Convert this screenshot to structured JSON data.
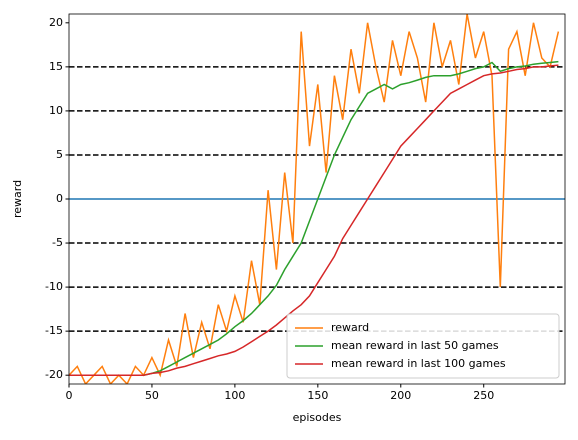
{
  "chart_data": {
    "type": "line",
    "xlabel": "episodes",
    "ylabel": "reward",
    "x": [
      0,
      5,
      10,
      15,
      20,
      25,
      30,
      35,
      40,
      45,
      50,
      55,
      60,
      65,
      70,
      75,
      80,
      85,
      90,
      95,
      100,
      105,
      110,
      115,
      120,
      125,
      130,
      135,
      140,
      145,
      150,
      155,
      160,
      165,
      170,
      175,
      180,
      185,
      190,
      195,
      200,
      205,
      210,
      215,
      220,
      225,
      230,
      235,
      240,
      245,
      250,
      255,
      260,
      265,
      270,
      275,
      280,
      285,
      290,
      295
    ],
    "series": [
      {
        "name": "reward",
        "color": "#ff7f0e",
        "values": [
          -20,
          -19,
          -21,
          -20,
          -19,
          -21,
          -20,
          -21,
          -19,
          -20,
          -18,
          -20,
          -16,
          -19,
          -13,
          -18,
          -14,
          -17,
          -12,
          -15,
          -11,
          -14,
          -7,
          -12,
          1,
          -8,
          3,
          -5,
          19,
          6,
          13,
          3,
          14,
          9,
          17,
          12,
          20,
          15,
          11,
          18,
          14,
          19,
          16,
          11,
          20,
          15,
          18,
          13,
          21,
          16,
          19,
          14,
          -10,
          17,
          19,
          14,
          20,
          16,
          15,
          19
        ]
      },
      {
        "name": "mean reward in last 50 games",
        "color": "#2ca02c",
        "values": [
          -20,
          -20,
          -20,
          -20,
          -20,
          -20,
          -20,
          -20,
          -20,
          -20,
          -19.8,
          -19.5,
          -19,
          -18.5,
          -18,
          -17.5,
          -17,
          -16.5,
          -16,
          -15.3,
          -14.5,
          -13.8,
          -13,
          -12,
          -11,
          -9.8,
          -8,
          -6.5,
          -5,
          -2.5,
          0,
          2.5,
          5,
          7,
          9,
          10.5,
          12,
          12.5,
          13,
          12.5,
          13,
          13.2,
          13.5,
          13.8,
          14,
          14,
          14,
          14.2,
          14.5,
          14.8,
          15,
          15.5,
          14.5,
          14.8,
          15,
          15.1,
          15.3,
          15.4,
          15.5,
          15.6
        ]
      },
      {
        "name": "mean reward in last 100 games",
        "color": "#d62728",
        "values": [
          -20,
          -20,
          -20,
          -20,
          -20,
          -20,
          -20,
          -20,
          -20,
          -20,
          -19.8,
          -19.7,
          -19.5,
          -19.2,
          -19,
          -18.7,
          -18.4,
          -18.1,
          -17.8,
          -17.6,
          -17.3,
          -16.8,
          -16.2,
          -15.6,
          -15,
          -14.3,
          -13.5,
          -12.7,
          -12,
          -11,
          -9.5,
          -8,
          -6.5,
          -4.5,
          -3,
          -1.5,
          0,
          1.5,
          3,
          4.5,
          6,
          7,
          8,
          9,
          10,
          11,
          12,
          12.5,
          13,
          13.5,
          14,
          14.2,
          14.3,
          14.5,
          14.7,
          14.8,
          15,
          15,
          15.1,
          15.2
        ]
      }
    ],
    "hlines": [
      {
        "y": 0,
        "color": "#1f77b4",
        "style": "solid"
      },
      {
        "y": -15,
        "color": "#000000",
        "style": "dashed"
      },
      {
        "y": -10,
        "color": "#000000",
        "style": "dashed"
      },
      {
        "y": -5,
        "color": "#000000",
        "style": "dashed"
      },
      {
        "y": 5,
        "color": "#000000",
        "style": "dashed"
      },
      {
        "y": 10,
        "color": "#000000",
        "style": "dashed"
      },
      {
        "y": 15,
        "color": "#000000",
        "style": "dashed"
      }
    ],
    "xlim": [
      0,
      299
    ],
    "ylim": [
      -21,
      21
    ],
    "xticks": [
      0,
      50,
      100,
      150,
      200,
      250
    ],
    "yticks": [
      -20,
      -15,
      -10,
      -5,
      0,
      5,
      10,
      15,
      20
    ],
    "legend": "lower right"
  }
}
